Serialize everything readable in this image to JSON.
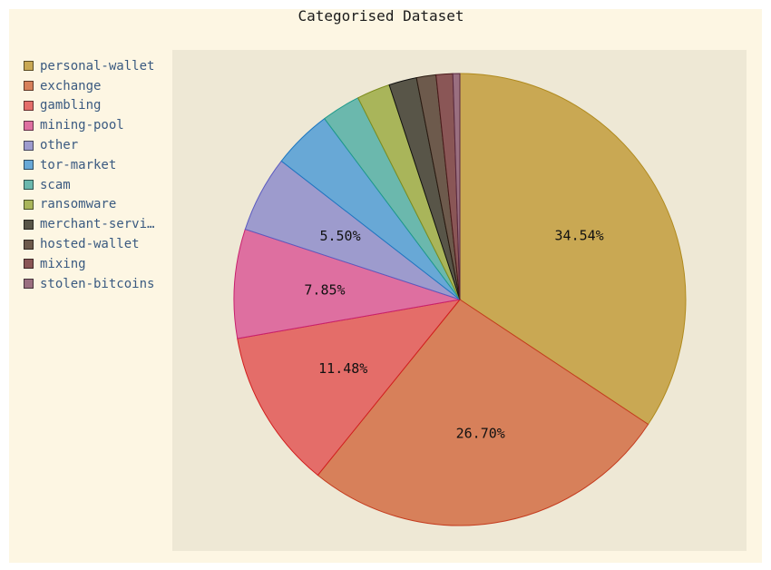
{
  "chart_data": {
    "type": "pie",
    "title": "Categorised Dataset",
    "legend_position": "top-left",
    "slices": [
      {
        "label": "personal-wallet",
        "legend": "personal-wallet",
        "value": 34.54,
        "value_label": "34.54%",
        "color": "#c9a853",
        "stroke": "#b08a1e"
      },
      {
        "label": "exchange",
        "legend": "exchange",
        "value": 26.7,
        "value_label": "26.70%",
        "color": "#d7805a",
        "stroke": "#c43b1e"
      },
      {
        "label": "gambling",
        "legend": "gambling",
        "value": 11.48,
        "value_label": "11.48%",
        "color": "#e46d69",
        "stroke": "#d11e1e"
      },
      {
        "label": "mining-pool",
        "legend": "mining-pool",
        "value": 7.85,
        "value_label": "7.85%",
        "color": "#de6fa0",
        "stroke": "#c8206e"
      },
      {
        "label": "other",
        "legend": "other",
        "value": 5.5,
        "value_label": "5.50%",
        "color": "#9d9bcd",
        "stroke": "#5b5bc0"
      },
      {
        "label": "tor-market",
        "legend": "tor-market",
        "value": 4.3,
        "value_label": "",
        "color": "#68a8d6",
        "stroke": "#1f78c0"
      },
      {
        "label": "scam",
        "legend": "scam",
        "value": 2.8,
        "value_label": "",
        "color": "#6bb8ad",
        "stroke": "#1f9a8a"
      },
      {
        "label": "ransomware",
        "legend": "ransomware",
        "value": 2.4,
        "value_label": "",
        "color": "#a9b55a",
        "stroke": "#7d8c1e"
      },
      {
        "label": "merchant-services",
        "legend": "merchant-servi…",
        "value": 2.0,
        "value_label": "",
        "color": "#585548",
        "stroke": "#111111"
      },
      {
        "label": "hosted-wallet",
        "legend": "hosted-wallet",
        "value": 1.4,
        "value_label": "",
        "color": "#6d5a4c",
        "stroke": "#2a1a10"
      },
      {
        "label": "mixing",
        "legend": "mixing",
        "value": 1.2,
        "value_label": "",
        "color": "#8a5656",
        "stroke": "#4a1a1a"
      },
      {
        "label": "stolen-bitcoins",
        "legend": "stolen-bitcoins",
        "value": 0.5,
        "value_label": "",
        "color": "#9a6f80",
        "stroke": "#5a2a40"
      }
    ]
  }
}
